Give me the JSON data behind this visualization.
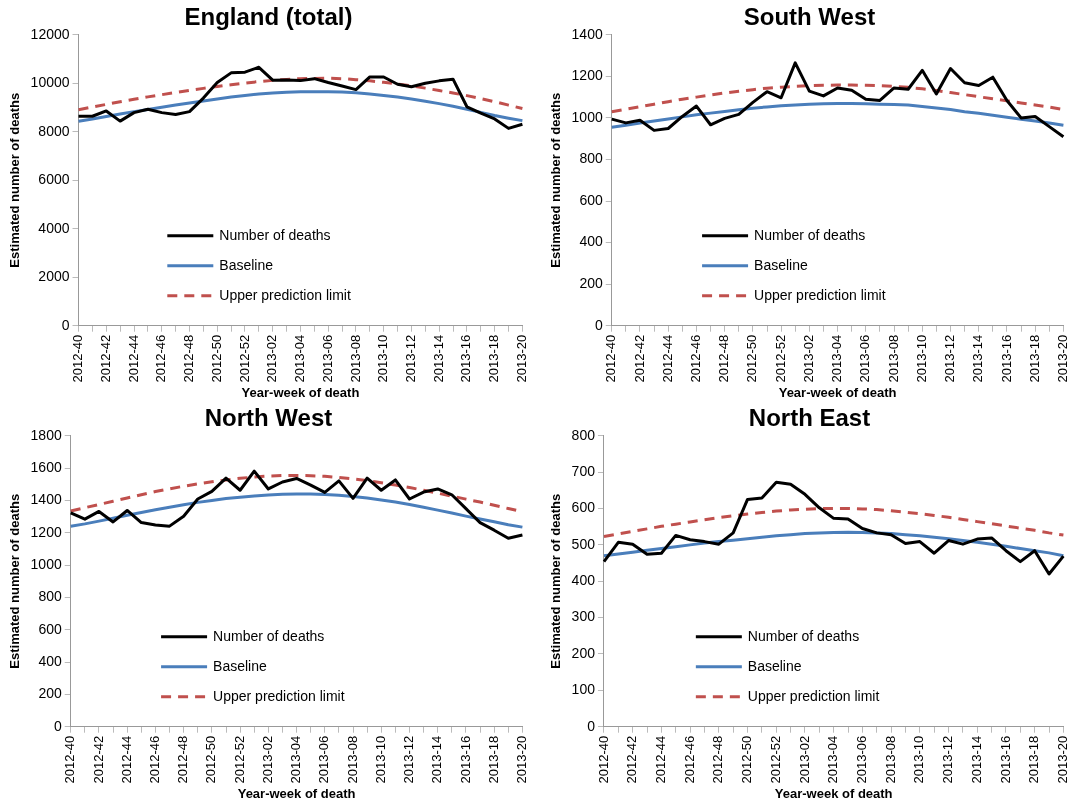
{
  "chart_data": [
    {
      "type": "line",
      "title": "England (total)",
      "xlabel": "Year-week of death",
      "ylabel": "Estimated number of deaths",
      "ylim": [
        0,
        12000
      ],
      "yticks": [
        0,
        2000,
        4000,
        6000,
        8000,
        10000,
        12000
      ],
      "grid": false,
      "legend": "bottom",
      "marker": "none",
      "categories": [
        "2012-40",
        null,
        "2012-42",
        null,
        "2012-44",
        null,
        "2012-46",
        null,
        "2012-48",
        null,
        "2012-50",
        null,
        "2012-52",
        null,
        "2013-02",
        null,
        "2013-04",
        null,
        "2013-06",
        null,
        "2013-08",
        null,
        "2013-10",
        null,
        "2013-12",
        null,
        "2013-14",
        null,
        "2013-16",
        null,
        "2013-18",
        null,
        "2013-20"
      ],
      "series": [
        {
          "name": "Number of deaths",
          "color": "#000000",
          "line_style": "solid",
          "values": [
            8640,
            8640,
            8860,
            8440,
            8790,
            8930,
            8790,
            8710,
            8830,
            9390,
            10030,
            10430,
            10460,
            10660,
            10130,
            10140,
            10110,
            10190,
            10030,
            9890,
            9740,
            10260,
            10260,
            9960,
            9860,
            10000,
            10100,
            10170,
            9030,
            8770,
            8530,
            8140,
            8310
          ]
        },
        {
          "name": "Baseline",
          "color": "#4a7ebb",
          "line_style": "solid",
          "values": [
            8430,
            8530,
            8630,
            8730,
            8830,
            8920,
            9010,
            9100,
            9190,
            9270,
            9350,
            9430,
            9500,
            9560,
            9600,
            9630,
            9650,
            9650,
            9650,
            9640,
            9610,
            9560,
            9500,
            9430,
            9350,
            9260,
            9160,
            9050,
            8930,
            8800,
            8670,
            8560,
            8460
          ]
        },
        {
          "name": "Upper prediction limit",
          "color": "#c0504d",
          "line_style": "dashed",
          "values": [
            8910,
            9020,
            9130,
            9240,
            9340,
            9440,
            9530,
            9620,
            9710,
            9790,
            9870,
            9940,
            10010,
            10070,
            10120,
            10160,
            10190,
            10200,
            10210,
            10190,
            10150,
            10100,
            10040,
            9970,
            9890,
            9800,
            9700,
            9600,
            9490,
            9370,
            9240,
            9100,
            8960
          ]
        }
      ]
    },
    {
      "type": "line",
      "title": "South West",
      "xlabel": "Year-week of death",
      "ylabel": "Estimated number of deaths",
      "ylim": [
        0,
        1400
      ],
      "yticks": [
        0,
        200,
        400,
        600,
        800,
        1000,
        1200,
        1400
      ],
      "grid": false,
      "legend": "bottom",
      "marker": "none",
      "categories": [
        "2012-40",
        null,
        "2012-42",
        null,
        "2012-44",
        null,
        "2012-46",
        null,
        "2012-48",
        null,
        "2012-50",
        null,
        "2012-52",
        null,
        "2013-02",
        null,
        "2013-04",
        null,
        "2013-06",
        null,
        "2013-08",
        null,
        "2013-10",
        null,
        "2013-12",
        null,
        "2013-14",
        null,
        "2013-16",
        null,
        "2013-18",
        null,
        "2013-20"
      ],
      "series": [
        {
          "name": "Number of deaths",
          "color": "#000000",
          "line_style": "solid",
          "values": [
            994,
            976,
            989,
            940,
            949,
            1007,
            1057,
            967,
            998,
            1017,
            1075,
            1126,
            1097,
            1265,
            1129,
            1106,
            1144,
            1133,
            1090,
            1084,
            1144,
            1138,
            1229,
            1115,
            1238,
            1169,
            1156,
            1196,
            1084,
            1000,
            1007,
            958,
            909
          ]
        },
        {
          "name": "Baseline",
          "color": "#4a7ebb",
          "line_style": "solid",
          "values": [
            955,
            965,
            975,
            985,
            995,
            1005,
            1015,
            1023,
            1031,
            1039,
            1047,
            1053,
            1058,
            1062,
            1066,
            1068,
            1069,
            1069,
            1068,
            1066,
            1064,
            1062,
            1055,
            1048,
            1040,
            1030,
            1022,
            1013,
            1003,
            994,
            985,
            975,
            965
          ]
        },
        {
          "name": "Upper prediction limit",
          "color": "#c0504d",
          "line_style": "dashed",
          "values": [
            1030,
            1042,
            1054,
            1066,
            1078,
            1090,
            1100,
            1110,
            1120,
            1128,
            1136,
            1143,
            1148,
            1152,
            1155,
            1157,
            1158,
            1158,
            1157,
            1155,
            1152,
            1147,
            1140,
            1132,
            1122,
            1112,
            1102,
            1092,
            1082,
            1072,
            1062,
            1052,
            1040
          ]
        }
      ]
    },
    {
      "type": "line",
      "title": "North West",
      "xlabel": "Year-week of death",
      "ylabel": "Estimated number of deaths",
      "ylim": [
        0,
        1800
      ],
      "yticks": [
        0,
        200,
        400,
        600,
        800,
        1000,
        1200,
        1400,
        1600,
        1800
      ],
      "grid": false,
      "legend": "bottom",
      "marker": "none",
      "categories": [
        "2012-40",
        null,
        "2012-42",
        null,
        "2012-44",
        null,
        "2012-46",
        null,
        "2012-48",
        null,
        "2012-50",
        null,
        "2012-52",
        null,
        "2013-02",
        null,
        "2013-04",
        null,
        "2013-06",
        null,
        "2013-08",
        null,
        "2013-10",
        null,
        "2013-12",
        null,
        "2013-14",
        null,
        "2013-16",
        null,
        "2013-18",
        null,
        "2013-20"
      ],
      "series": [
        {
          "name": "Number of deaths",
          "color": "#000000",
          "line_style": "solid",
          "values": [
            1323,
            1284,
            1332,
            1267,
            1338,
            1263,
            1248,
            1241,
            1302,
            1409,
            1456,
            1538,
            1463,
            1581,
            1471,
            1514,
            1536,
            1495,
            1450,
            1521,
            1413,
            1538,
            1463,
            1527,
            1409,
            1452,
            1471,
            1435,
            1349,
            1263,
            1216,
            1166,
            1186
          ]
        },
        {
          "name": "Baseline",
          "color": "#4a7ebb",
          "line_style": "solid",
          "values": [
            1240,
            1255,
            1272,
            1290,
            1308,
            1325,
            1342,
            1358,
            1373,
            1388,
            1400,
            1412,
            1420,
            1428,
            1434,
            1438,
            1440,
            1440,
            1437,
            1432,
            1424,
            1415,
            1403,
            1390,
            1375,
            1358,
            1340,
            1322,
            1303,
            1285,
            1268,
            1250,
            1235
          ]
        },
        {
          "name": "Upper prediction limit",
          "color": "#c0504d",
          "line_style": "dashed",
          "values": [
            1335,
            1355,
            1375,
            1395,
            1415,
            1435,
            1455,
            1472,
            1488,
            1502,
            1515,
            1527,
            1537,
            1545,
            1551,
            1554,
            1555,
            1553,
            1549,
            1542,
            1533,
            1522,
            1510,
            1495,
            1480,
            1463,
            1445,
            1427,
            1408,
            1390,
            1370,
            1350,
            1330
          ]
        }
      ]
    },
    {
      "type": "line",
      "title": "North East",
      "xlabel": "Year-week of death",
      "ylabel": "Estimated number of deaths",
      "ylim": [
        0,
        800
      ],
      "yticks": [
        0,
        100,
        200,
        300,
        400,
        500,
        600,
        700,
        800
      ],
      "grid": false,
      "legend": "bottom",
      "marker": "none",
      "categories": [
        "2012-40",
        null,
        "2012-42",
        null,
        "2012-44",
        null,
        "2012-46",
        null,
        "2012-48",
        null,
        "2012-50",
        null,
        "2012-52",
        null,
        "2013-02",
        null,
        "2013-04",
        null,
        "2013-06",
        null,
        "2013-08",
        null,
        "2013-10",
        null,
        "2013-12",
        null,
        "2013-14",
        null,
        "2013-16",
        null,
        "2013-18",
        null,
        "2013-20"
      ],
      "series": [
        {
          "name": "Number of deaths",
          "color": "#000000",
          "line_style": "solid",
          "values": [
            454,
            507,
            502,
            474,
            477,
            526,
            514,
            509,
            502,
            533,
            625,
            629,
            672,
            667,
            639,
            602,
            573,
            571,
            545,
            533,
            528,
            504,
            509,
            477,
            512,
            502,
            516,
            519,
            484,
            454,
            484,
            420,
            469
          ]
        },
        {
          "name": "Baseline",
          "color": "#4a7ebb",
          "line_style": "solid",
          "values": [
            470,
            475,
            480,
            485,
            490,
            495,
            500,
            505,
            509,
            513,
            517,
            521,
            525,
            528,
            531,
            533,
            534,
            535,
            534,
            533,
            531,
            528,
            525,
            521,
            517,
            512,
            507,
            502,
            496,
            490,
            484,
            478,
            470
          ]
        },
        {
          "name": "Upper prediction limit",
          "color": "#c0504d",
          "line_style": "dashed",
          "values": [
            523,
            530,
            537,
            544,
            551,
            557,
            563,
            569,
            575,
            580,
            585,
            589,
            593,
            596,
            598,
            600,
            600,
            600,
            599,
            597,
            594,
            590,
            586,
            581,
            576,
            570,
            564,
            558,
            552,
            546,
            540,
            533,
            527
          ]
        }
      ]
    }
  ]
}
